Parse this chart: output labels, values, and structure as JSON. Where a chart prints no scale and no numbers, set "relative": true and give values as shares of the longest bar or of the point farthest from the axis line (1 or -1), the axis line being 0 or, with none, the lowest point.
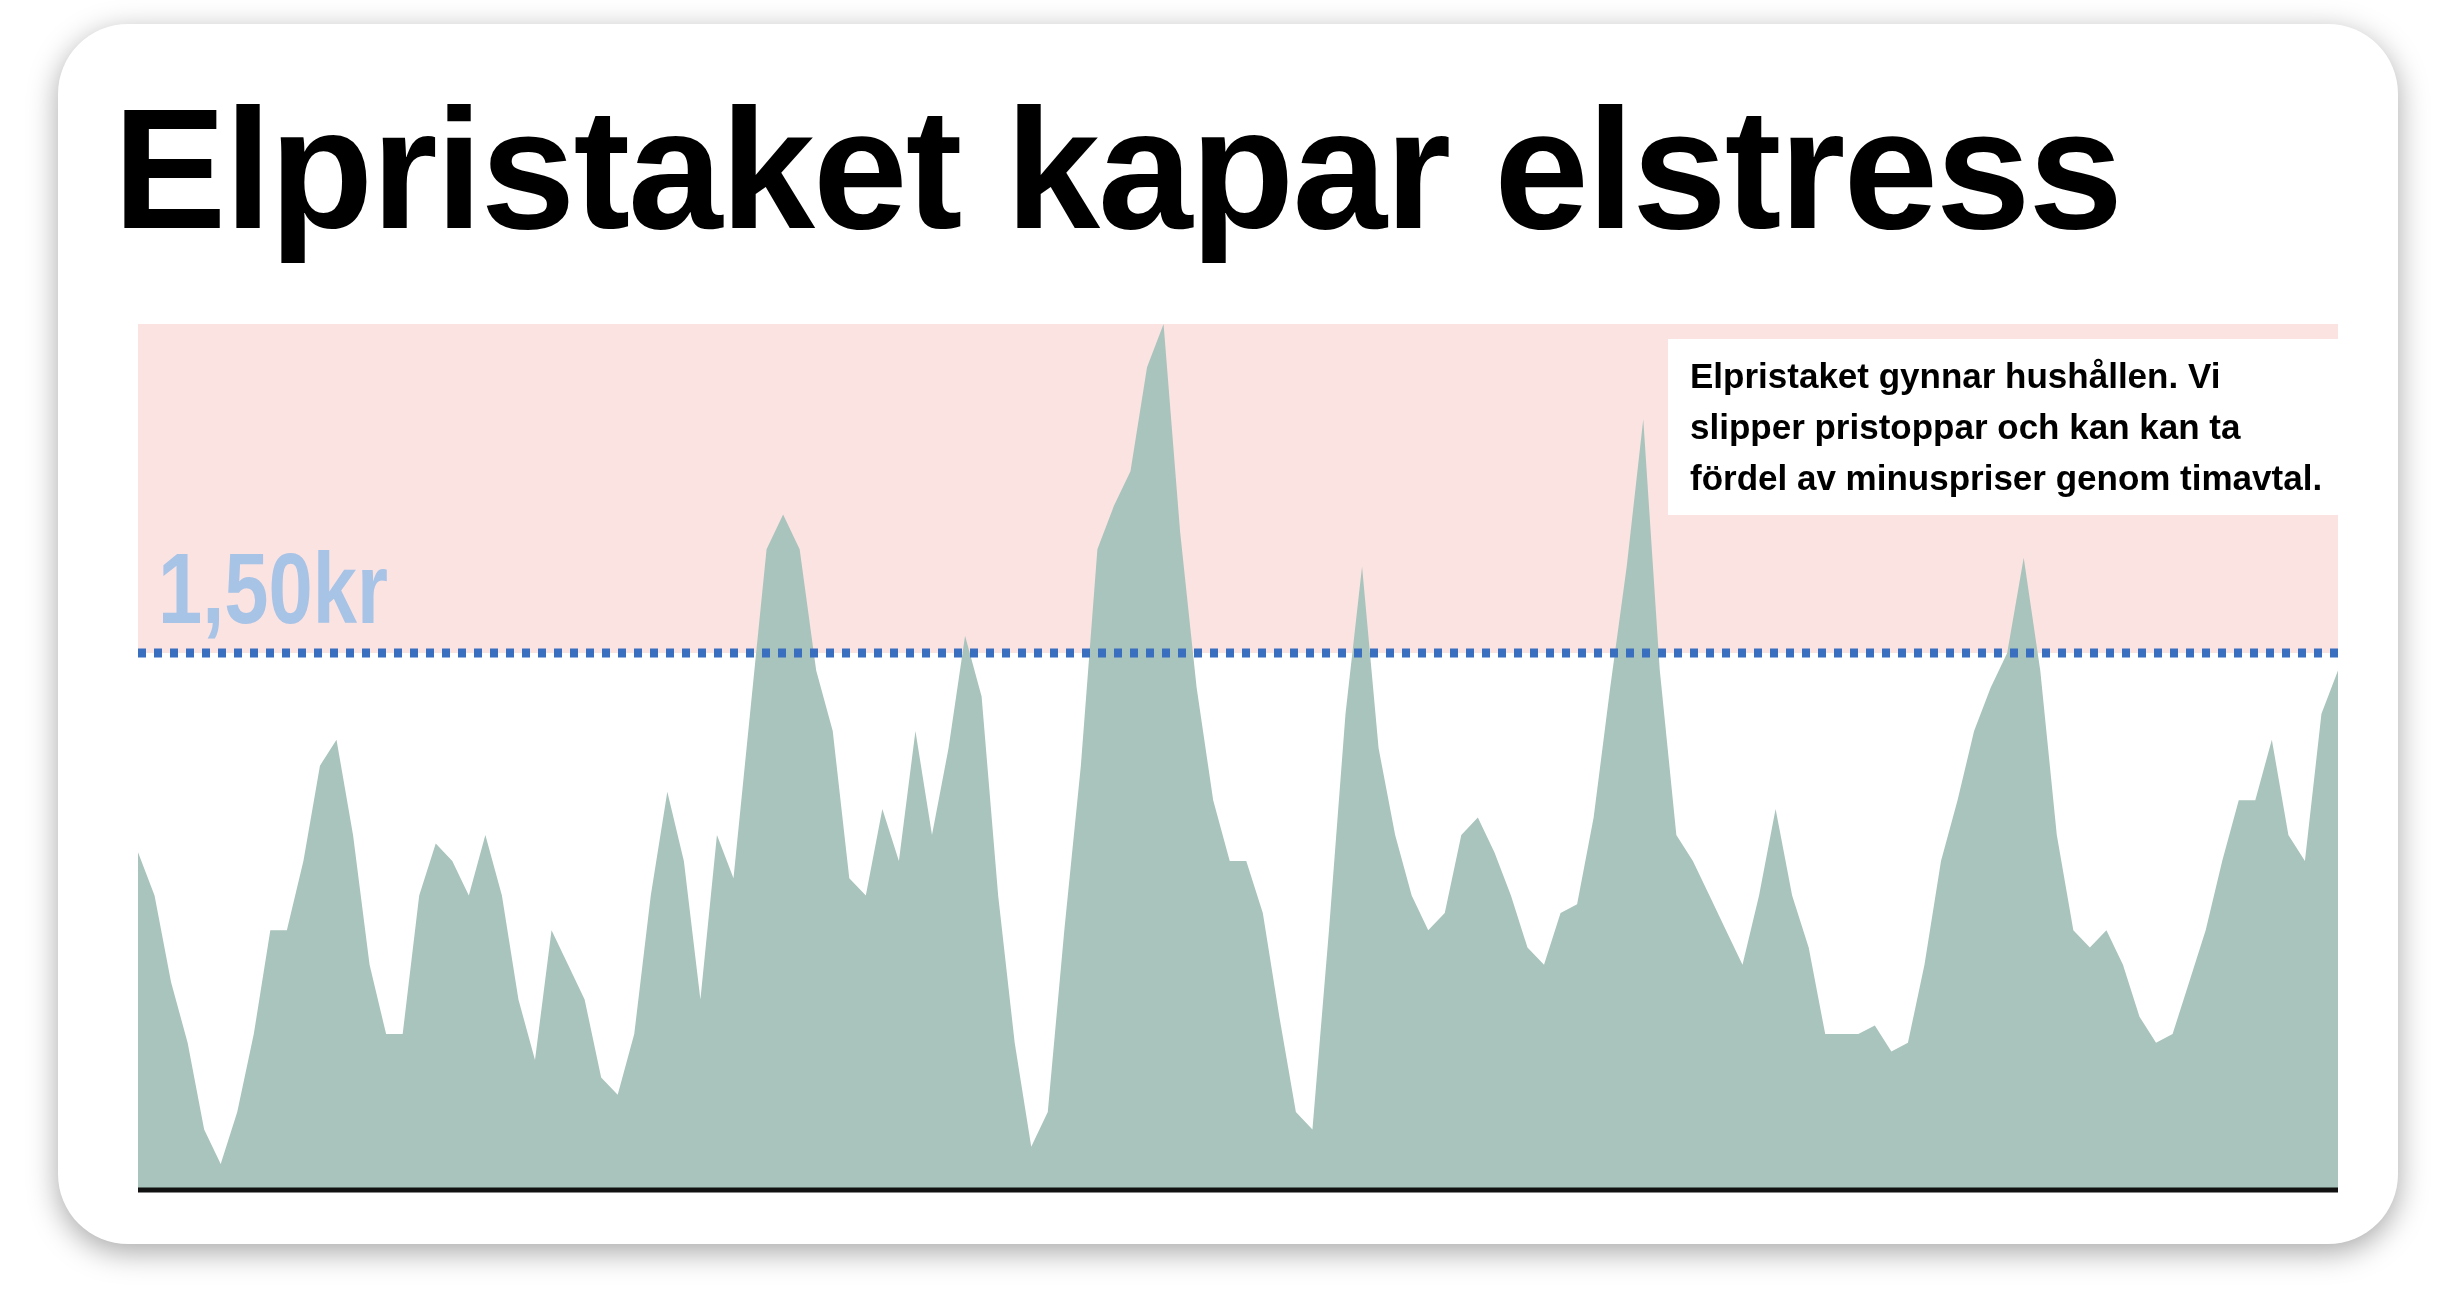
{
  "chart_data": {
    "type": "area",
    "title": "Elpristaket kapar elstress",
    "relative": true,
    "color": "#a9c4bc",
    "categories": [
      null,
      null,
      null,
      null,
      null,
      null,
      null,
      null,
      null,
      null,
      null,
      null,
      null,
      null,
      null,
      null,
      null,
      null,
      null,
      null,
      null,
      null,
      null,
      null,
      null,
      null,
      null,
      null,
      null,
      null,
      null,
      null,
      null,
      null,
      null,
      null,
      null,
      null,
      null,
      null,
      null,
      null,
      null,
      null,
      null,
      null,
      null,
      null,
      null,
      null,
      null,
      null,
      null,
      null,
      null,
      null,
      null,
      null,
      null,
      null,
      null,
      null,
      null,
      null,
      null,
      null,
      null,
      null,
      null,
      null,
      null,
      null,
      null,
      null,
      null,
      null,
      null,
      null,
      null,
      null,
      null,
      null,
      null,
      null,
      null,
      null,
      null,
      null,
      null,
      null,
      null,
      null,
      null,
      null,
      null,
      null,
      null,
      null,
      null,
      null,
      null,
      null,
      null,
      null,
      null,
      null,
      null,
      null,
      null,
      null,
      null,
      null,
      null,
      null,
      null,
      null,
      null,
      null,
      null,
      null,
      null,
      null,
      null,
      null,
      null,
      null,
      null,
      null,
      null,
      null,
      null,
      null,
      null,
      null
    ],
    "values": [
      0.39,
      0.34,
      0.24,
      0.17,
      0.07,
      0.03,
      0.09,
      0.18,
      0.3,
      0.3,
      0.38,
      0.49,
      0.52,
      0.41,
      0.26,
      0.18,
      0.18,
      0.34,
      0.4,
      0.38,
      0.34,
      0.41,
      0.34,
      0.22,
      0.15,
      0.3,
      0.26,
      0.22,
      0.13,
      0.11,
      0.18,
      0.34,
      0.46,
      0.38,
      0.22,
      0.41,
      0.36,
      0.55,
      0.74,
      0.78,
      0.74,
      0.6,
      0.53,
      0.36,
      0.34,
      0.44,
      0.38,
      0.53,
      0.41,
      0.51,
      0.64,
      0.57,
      0.34,
      0.17,
      0.05,
      0.09,
      0.3,
      0.49,
      0.74,
      0.79,
      0.83,
      0.95,
      1,
      0.76,
      0.58,
      0.45,
      0.38,
      0.38,
      0.32,
      0.2,
      0.09,
      0.07,
      0.3,
      0.55,
      0.72,
      0.51,
      0.41,
      0.34,
      0.3,
      0.32,
      0.41,
      0.43,
      0.39,
      0.34,
      0.28,
      0.26,
      0.32,
      0.33,
      0.43,
      0.58,
      0.72,
      0.89,
      0.6,
      0.41,
      0.38,
      0.34,
      0.3,
      0.26,
      0.34,
      0.44,
      0.34,
      0.28,
      0.18,
      0.18,
      0.18,
      0.19,
      0.16,
      0.17,
      0.26,
      0.38,
      0.45,
      0.53,
      0.58,
      0.62,
      0.73,
      0.6,
      0.41,
      0.3,
      0.28,
      0.3,
      0.26,
      0.2,
      0.17,
      0.18,
      0.24,
      0.3,
      0.38,
      0.45,
      0.45,
      0.52,
      0.41,
      0.38,
      0.55,
      0.6
    ],
    "ref_lines": [
      {
        "axis": "y",
        "value": 0.62,
        "label": "1,50kr",
        "color": "#3a6fc0",
        "line_style": "dotted"
      }
    ],
    "bands": [
      {
        "axis": "y",
        "from": 0.62,
        "to": 1,
        "color": "#fbe3e2"
      }
    ],
    "annotations": [
      "Elpristaket gynnar hushållen. Vi slipper pristoppar och kan kan ta fördel av minuspriser genom timavtal."
    ]
  }
}
